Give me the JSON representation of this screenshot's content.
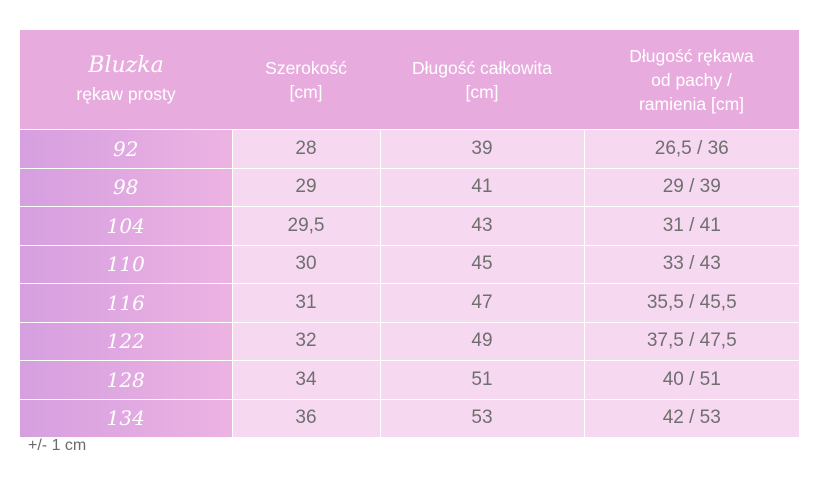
{
  "table": {
    "corner": {
      "name": "Bluzka",
      "subtitle": "rękaw prosty"
    },
    "headers": [
      [
        "Szerokość",
        "[cm]"
      ],
      [
        "Długość całkowita",
        "[cm]"
      ],
      [
        "Długość rękawa",
        "od pachy /",
        "ramienia [cm]"
      ]
    ],
    "rows": [
      [
        "92",
        "28",
        "39",
        "26,5 / 36"
      ],
      [
        "98",
        "29",
        "41",
        "29 / 39"
      ],
      [
        "104",
        "29,5",
        "43",
        "31 / 41"
      ],
      [
        "110",
        "30",
        "45",
        "33 / 43"
      ],
      [
        "116",
        "31",
        "47",
        "35,5 / 45,5"
      ],
      [
        "122",
        "32",
        "49",
        "37,5 / 47,5"
      ],
      [
        "128",
        "34",
        "51",
        "40 / 51"
      ],
      [
        "134",
        "36",
        "53",
        "42 / 53"
      ]
    ]
  },
  "footnote": "+/- 1 cm",
  "colors": {
    "header_bg": "#e7acdd",
    "row_bg": "#f6d8f0",
    "size_col_gradient": [
      "#d69fe0",
      "#ecb3e2"
    ],
    "header_text": "#ffffff",
    "body_text": "#6f6f6f"
  }
}
